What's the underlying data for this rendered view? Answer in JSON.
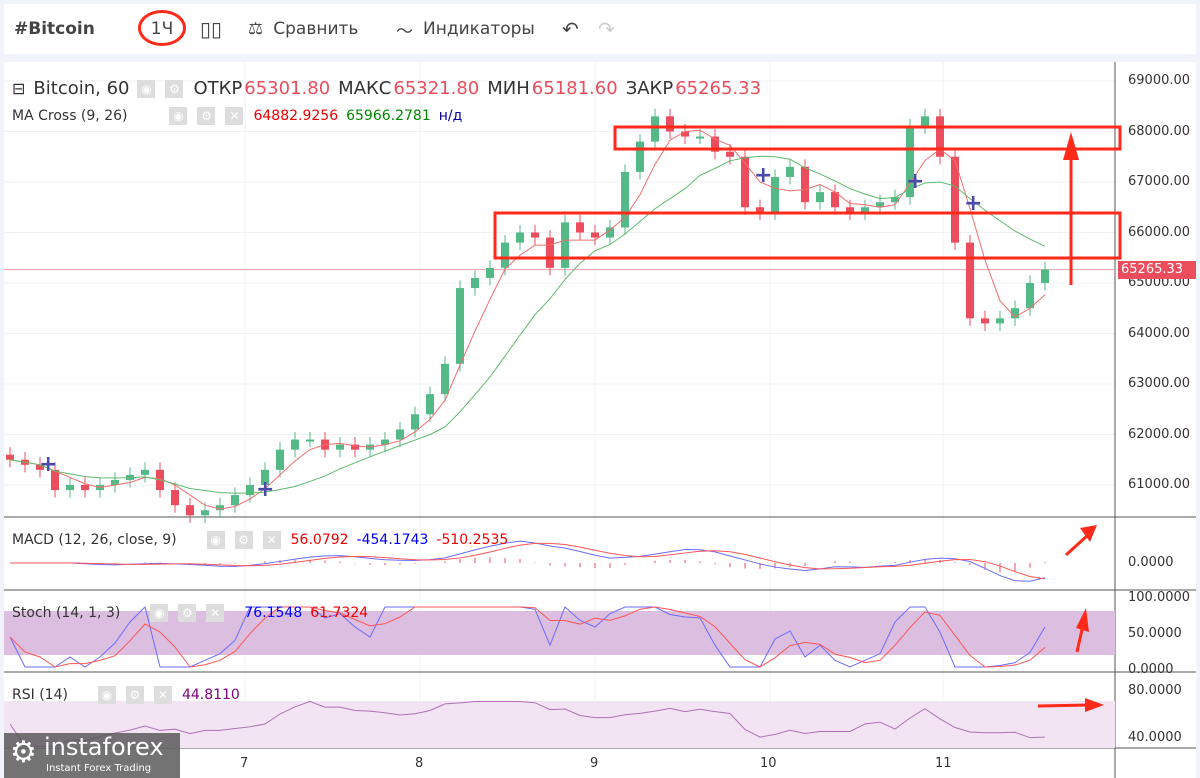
{
  "toolbar": {
    "symbol": "#Bitcoin",
    "interval": "1Ч",
    "compare": "Сравнить",
    "indicators": "Индикаторы"
  },
  "legend": {
    "title": "Bitcoin, 60",
    "open_label": "ОТКР",
    "open": "65301.80",
    "high_label": "МАКС",
    "high": "65321.80",
    "low_label": "МИН",
    "low": "65181.60",
    "close_label": "ЗАКР",
    "close": "65265.33",
    "ma_name": "MA Cross (9, 26)",
    "ma_fast": "64882.9256",
    "ma_slow": "65966.2781",
    "ma_na": "н/д",
    "macd_name": "MACD (12, 26, close, 9)",
    "macd_hist": "56.0792",
    "macd_line": "-454.1743",
    "macd_signal": "-510.2535",
    "stoch_name": "Stoch (14, 1, 3)",
    "stoch_k": "76.1548",
    "stoch_d": "61.7324",
    "rsi_name": "RSI (14)",
    "rsi_val": "44.8110"
  },
  "price_axis": [
    "69000.00",
    "68000.00",
    "67000.00",
    "66000.00",
    "65000.00",
    "64000.00",
    "63000.00",
    "62000.00",
    "61000.00"
  ],
  "last_price": "65265.33",
  "macd_axis": [
    "0.0000"
  ],
  "stoch_axis": [
    "100.0000",
    "50.0000",
    "0.0000"
  ],
  "rsi_axis": [
    "80.0000",
    "40.0000"
  ],
  "time_axis": [
    "7",
    "8",
    "9",
    "10",
    "11"
  ],
  "watermark": {
    "brand": "instaforex",
    "tagline": "Instant Forex Trading"
  },
  "colors": {
    "up": "#53b987",
    "down": "#eb4d5c",
    "ma_fast": "#f26d6d",
    "ma_slow": "#5fba6d",
    "annotation": "#ff2a1a"
  },
  "chart_data": {
    "type": "candlestick",
    "ylim": [
      60300,
      69000
    ],
    "closes": [
      61500,
      61400,
      61300,
      60900,
      61000,
      60900,
      61000,
      61100,
      61200,
      61300,
      60900,
      60600,
      60400,
      60500,
      60600,
      60800,
      61000,
      61300,
      61700,
      61900,
      61900,
      61700,
      61800,
      61700,
      61800,
      61900,
      62100,
      62400,
      62800,
      63400,
      64900,
      65100,
      65300,
      65800,
      66000,
      65900,
      65300,
      66200,
      66000,
      65900,
      66100,
      67200,
      67800,
      68300,
      68000,
      67900,
      67900,
      67600,
      67500,
      66500,
      66400,
      67100,
      67300,
      66600,
      66800,
      66500,
      66400,
      66500,
      66600,
      66700,
      68100,
      68300,
      67500,
      65800,
      64300,
      64200,
      64300,
      64500,
      65000,
      65270
    ]
  }
}
